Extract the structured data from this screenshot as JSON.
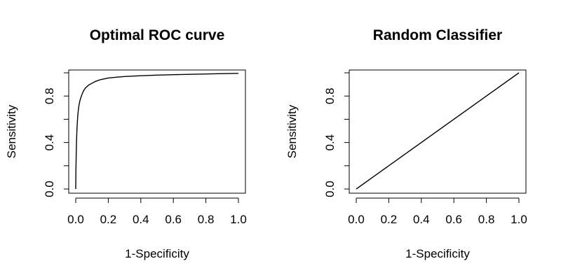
{
  "chart_data": [
    {
      "type": "line",
      "title": "Optimal ROC curve",
      "xlabel": "1-Specificity",
      "ylabel": "Sensitivity",
      "xlim": [
        0,
        1
      ],
      "ylim": [
        0,
        1
      ],
      "x_ticks": [
        "0.0",
        "0.2",
        "0.4",
        "0.6",
        "0.8",
        "1.0"
      ],
      "y_ticks": [
        "0.0",
        "0.4",
        "0.8"
      ],
      "y_tick_positions": [
        0,
        0.2,
        0.4,
        0.6,
        0.8,
        1.0
      ],
      "grid": false,
      "series": [
        {
          "x": [
            0.0,
            0.001,
            0.003,
            0.005,
            0.008,
            0.012,
            0.016,
            0.02,
            0.025,
            0.03,
            0.04,
            0.05,
            0.06,
            0.08,
            0.1,
            0.12,
            0.15,
            0.2,
            0.25,
            0.3,
            0.4,
            0.5,
            0.6,
            0.7,
            0.8,
            0.9,
            1.0
          ],
          "y": [
            0.0,
            0.15,
            0.3,
            0.42,
            0.53,
            0.62,
            0.68,
            0.72,
            0.755,
            0.78,
            0.82,
            0.85,
            0.87,
            0.895,
            0.91,
            0.925,
            0.94,
            0.955,
            0.962,
            0.968,
            0.975,
            0.98,
            0.984,
            0.987,
            0.99,
            0.993,
            0.995
          ]
        }
      ]
    },
    {
      "type": "line",
      "title": "Random Classifier",
      "xlabel": "1-Specificity",
      "ylabel": "Sensitivity",
      "xlim": [
        0,
        1
      ],
      "ylim": [
        0,
        1
      ],
      "x_ticks": [
        "0.0",
        "0.2",
        "0.4",
        "0.6",
        "0.8",
        "1.0"
      ],
      "y_ticks": [
        "0.0",
        "0.4",
        "0.8"
      ],
      "y_tick_positions": [
        0,
        0.2,
        0.4,
        0.6,
        0.8,
        1.0
      ],
      "grid": false,
      "series": [
        {
          "x": [
            0,
            1
          ],
          "y": [
            0,
            1
          ]
        }
      ]
    }
  ]
}
